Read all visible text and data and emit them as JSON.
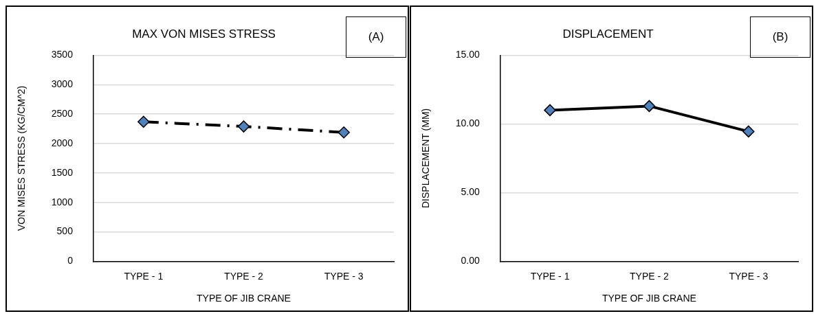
{
  "chart_data": [
    {
      "type": "line",
      "title": "MAX VON MISES STRESS",
      "xlabel": "TYPE OF JIB CRANE",
      "ylabel": "VON MISES STRESS (KG/CM^2)",
      "categories": [
        "TYPE - 1",
        "TYPE - 2",
        "TYPE - 3"
      ],
      "series": [
        {
          "color": "#000000",
          "values": [
            2370,
            2290,
            2190
          ]
        }
      ],
      "ylim": [
        0,
        3500
      ],
      "yticks": [
        0,
        500,
        1000,
        1500,
        2000,
        2500,
        3000,
        3500
      ],
      "grid": "y",
      "marker": "diamond",
      "line_style": "dashed",
      "legend": false,
      "annotations": [
        "(A)"
      ]
    },
    {
      "type": "line",
      "title": "DISPLACEMENT",
      "xlabel": "TYPE OF JIB CRANE",
      "ylabel": "DISPLACEMENT (MM)",
      "categories": [
        "TYPE - 1",
        "TYPE - 2",
        "TYPE - 3"
      ],
      "series": [
        {
          "color": "#000000",
          "values": [
            11.0,
            11.3,
            9.45
          ]
        }
      ],
      "ylim": [
        0,
        15
      ],
      "yticks": [
        {
          "value": 0,
          "label": "0.00"
        },
        {
          "value": 5,
          "label": "5.00"
        },
        {
          "value": 10,
          "label": "10.00"
        },
        {
          "value": 15,
          "label": "15.00"
        }
      ],
      "grid": "y",
      "marker": "diamond",
      "line_style": "solid",
      "legend": false,
      "annotations": [
        "(B)"
      ]
    }
  ]
}
